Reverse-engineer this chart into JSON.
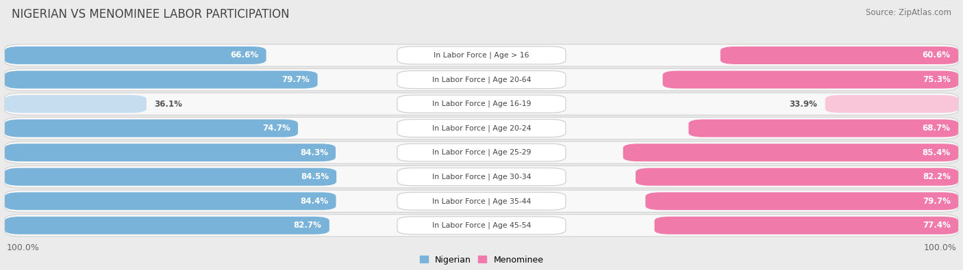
{
  "title": "NIGERIAN VS MENOMINEE LABOR PARTICIPATION",
  "source": "Source: ZipAtlas.com",
  "categories": [
    "In Labor Force | Age > 16",
    "In Labor Force | Age 20-64",
    "In Labor Force | Age 16-19",
    "In Labor Force | Age 20-24",
    "In Labor Force | Age 25-29",
    "In Labor Force | Age 30-34",
    "In Labor Force | Age 35-44",
    "In Labor Force | Age 45-54"
  ],
  "nigerian": [
    66.6,
    79.7,
    36.1,
    74.7,
    84.3,
    84.5,
    84.4,
    82.7
  ],
  "menominee": [
    60.6,
    75.3,
    33.9,
    68.7,
    85.4,
    82.2,
    79.7,
    77.4
  ],
  "nigerian_color": "#7ab3d9",
  "nigerian_light_color": "#c5ddef",
  "menominee_color": "#f07aaa",
  "menominee_light_color": "#f9c5d8",
  "bg_color": "#ebebeb",
  "row_bg_color": "#f8f8f8",
  "title_color": "#444444",
  "source_color": "#777777",
  "label_dark": "#555555",
  "max_value": 100.0,
  "figsize": [
    14.06,
    3.95
  ],
  "dpi": 100
}
